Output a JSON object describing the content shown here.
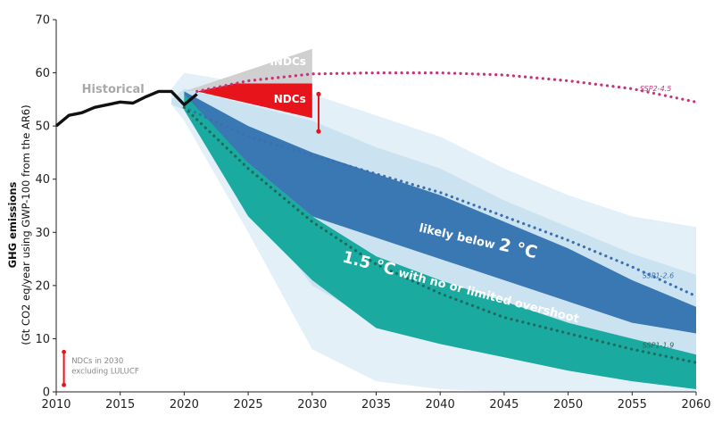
{
  "chart_data": {
    "type": "area",
    "title": "",
    "ylabel_line1": "GHG emissions",
    "ylabel_line2": "(Gt CO2 eq/year using GWP-100 from the AR6)",
    "xlim": [
      2010,
      2060
    ],
    "ylim": [
      0,
      70
    ],
    "x_ticks": [
      2010,
      2015,
      2020,
      2025,
      2030,
      2035,
      2040,
      2045,
      2050,
      2055,
      2060
    ],
    "y_ticks": [
      0,
      10,
      20,
      30,
      40,
      50,
      60,
      70
    ],
    "grid": false,
    "historical": {
      "name": "Historical",
      "color": "#111111",
      "points": [
        [
          2010,
          50
        ],
        [
          2011,
          52
        ],
        [
          2012,
          52.5
        ],
        [
          2013,
          53.5
        ],
        [
          2014,
          54
        ],
        [
          2015,
          54.5
        ],
        [
          2016,
          54.3
        ],
        [
          2017,
          55.5
        ],
        [
          2018,
          56.5
        ],
        [
          2019,
          56.5
        ],
        [
          2020,
          54
        ],
        [
          2021,
          56
        ]
      ]
    },
    "indcs": {
      "name": "INDCs",
      "color": "#d0d0d0",
      "points": [
        [
          2020,
          56.5
        ],
        [
          2030,
          64.5
        ],
        [
          2030,
          58
        ]
      ]
    },
    "ndcs": {
      "name": "NDCs",
      "color": "#e8141b",
      "points": [
        [
          2021,
          56.5
        ],
        [
          2024,
          58
        ],
        [
          2030,
          58
        ],
        [
          2030,
          51.5
        ]
      ]
    },
    "ndc_range": {
      "color": "#e8141b",
      "x": 2030.5,
      "y": [
        49,
        56
      ]
    },
    "likely_below_2c": {
      "name": "likely below 2 °C",
      "color": "#3a78b3",
      "upper": [
        [
          2020,
          56.5
        ],
        [
          2025,
          50
        ],
        [
          2030,
          45
        ],
        [
          2035,
          41
        ],
        [
          2040,
          37
        ],
        [
          2045,
          32
        ],
        [
          2050,
          27
        ],
        [
          2055,
          21
        ],
        [
          2060,
          16
        ]
      ],
      "lower": [
        [
          2060,
          11
        ],
        [
          2055,
          13
        ],
        [
          2050,
          17
        ],
        [
          2045,
          21
        ],
        [
          2040,
          25
        ],
        [
          2035,
          29
        ],
        [
          2030,
          33
        ],
        [
          2025,
          43
        ],
        [
          2020,
          54.5
        ]
      ]
    },
    "limited_overshoot_1_5c": {
      "name": "1.5 °C with no or limited overshoot",
      "color": "#1aaaa0",
      "upper": [
        [
          2020,
          56
        ],
        [
          2025,
          43
        ],
        [
          2030,
          33
        ],
        [
          2035,
          25.5
        ],
        [
          2040,
          21
        ],
        [
          2045,
          17
        ],
        [
          2050,
          13
        ],
        [
          2055,
          10
        ],
        [
          2060,
          7
        ]
      ],
      "lower": [
        [
          2060,
          0.5
        ],
        [
          2055,
          2
        ],
        [
          2050,
          4
        ],
        [
          2045,
          6.5
        ],
        [
          2040,
          9
        ],
        [
          2035,
          12
        ],
        [
          2030,
          21
        ],
        [
          2025,
          33
        ],
        [
          2020,
          53
        ]
      ]
    },
    "uncertainty_bands": {
      "color_outer": "#e3f0f8",
      "color_inner": "#cbe3f0",
      "outer_upper": [
        [
          2019,
          57
        ],
        [
          2020,
          60
        ],
        [
          2025,
          58
        ],
        [
          2030,
          56
        ],
        [
          2035,
          52
        ],
        [
          2040,
          48
        ],
        [
          2045,
          42
        ],
        [
          2050,
          37
        ],
        [
          2055,
          33
        ],
        [
          2060,
          31
        ]
      ],
      "outer_lower": [
        [
          2060,
          0
        ],
        [
          2055,
          0
        ],
        [
          2050,
          0
        ],
        [
          2045,
          0
        ],
        [
          2040,
          0.5
        ],
        [
          2035,
          2
        ],
        [
          2030,
          8
        ],
        [
          2025,
          30
        ],
        [
          2020,
          51
        ],
        [
          2019,
          54
        ]
      ],
      "inner_upper": [
        [
          2019,
          55
        ],
        [
          2020,
          57
        ],
        [
          2025,
          54
        ],
        [
          2030,
          51
        ],
        [
          2035,
          46
        ],
        [
          2040,
          42
        ],
        [
          2045,
          36
        ],
        [
          2050,
          31
        ],
        [
          2055,
          26
        ],
        [
          2060,
          22
        ]
      ],
      "inner_lower": [
        [
          2060,
          2
        ],
        [
          2055,
          4
        ],
        [
          2050,
          7
        ],
        [
          2045,
          9
        ],
        [
          2040,
          10
        ],
        [
          2035,
          13
        ],
        [
          2030,
          20
        ],
        [
          2025,
          36
        ],
        [
          2020,
          53
        ],
        [
          2019,
          54
        ]
      ]
    },
    "series": [
      {
        "name": "SSP2-4.5",
        "color": "#c8327a",
        "points": [
          [
            2021,
            56.5
          ],
          [
            2025,
            58.5
          ],
          [
            2030,
            59.8
          ],
          [
            2035,
            60
          ],
          [
            2040,
            60
          ],
          [
            2045,
            59.6
          ],
          [
            2050,
            58.5
          ],
          [
            2055,
            57
          ],
          [
            2060,
            54.5
          ]
        ]
      },
      {
        "name": "SSP1-2.6",
        "color": "#3c6fb0",
        "points": [
          [
            2020,
            53.5
          ],
          [
            2025,
            48
          ],
          [
            2030,
            44.5
          ],
          [
            2035,
            41
          ],
          [
            2040,
            37.5
          ],
          [
            2045,
            33
          ],
          [
            2050,
            28.5
          ],
          [
            2055,
            23.5
          ],
          [
            2060,
            18
          ]
        ]
      },
      {
        "name": "SSP1-1.9",
        "color": "#1f6a5e",
        "points": [
          [
            2020,
            53.5
          ],
          [
            2025,
            42
          ],
          [
            2030,
            32
          ],
          [
            2035,
            24
          ],
          [
            2040,
            18.5
          ],
          [
            2045,
            14
          ],
          [
            2050,
            11
          ],
          [
            2055,
            8
          ],
          [
            2060,
            5.5
          ]
        ]
      }
    ],
    "annotations": {
      "indcs": "INDCs",
      "ndcs": "NDCs",
      "historical": "Historical",
      "likely_below_prefix": "likely below ",
      "likely_below_big": "2 °C",
      "limited_big": "1.5 °C",
      "limited_rest": " with no or limited overshoot",
      "ndc_note_line1": "NDCs in 2030",
      "ndc_note_line2": "excluding LULUCF"
    }
  }
}
